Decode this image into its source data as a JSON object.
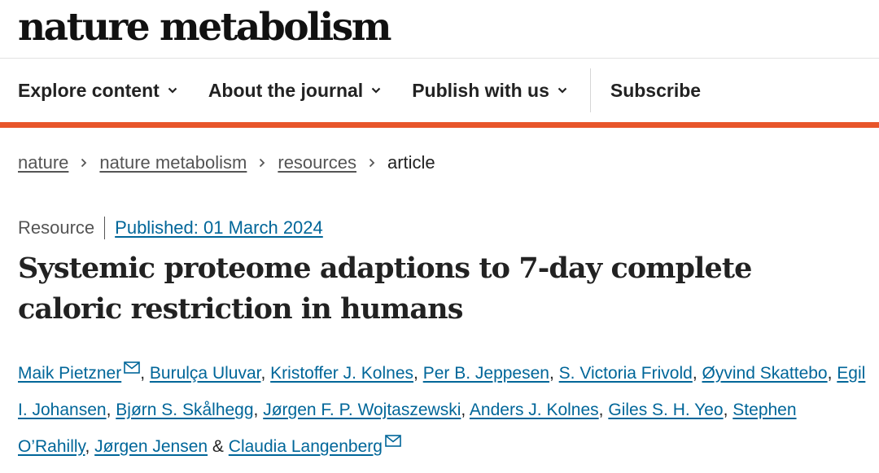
{
  "header": {
    "logo_text": "nature metabolism"
  },
  "nav": {
    "items": [
      {
        "label": "Explore content"
      },
      {
        "label": "About the journal"
      },
      {
        "label": "Publish with us"
      }
    ],
    "subscribe_label": "Subscribe"
  },
  "colors": {
    "accent_bar": "#e8552a",
    "link": "#006699"
  },
  "breadcrumb": {
    "items": [
      "nature",
      "nature metabolism",
      "resources"
    ],
    "current": "article"
  },
  "article": {
    "type": "Resource",
    "published": "Published: 01 March 2024",
    "title": "Systemic proteome adaptions to 7-day complete caloric restriction in humans",
    "authors": [
      "Maik Pietzner",
      "Burulça Uluvar",
      "Kristoffer J. Kolnes",
      "Per B. Jeppesen",
      "S. Victoria Frivold",
      "Øyvind Skattebo",
      "Egil I. Johansen",
      "Bjørn S. Skålhegg",
      "Jørgen F. P. Wojtaszewski",
      "Anders J. Kolnes",
      "Giles S. H. Yeo",
      "Stephen O’Rahilly",
      "Jørgen Jensen",
      "Claudia Langenberg"
    ],
    "separator": ",",
    "final_separator": "&",
    "email_icon": "envelope-icon"
  }
}
